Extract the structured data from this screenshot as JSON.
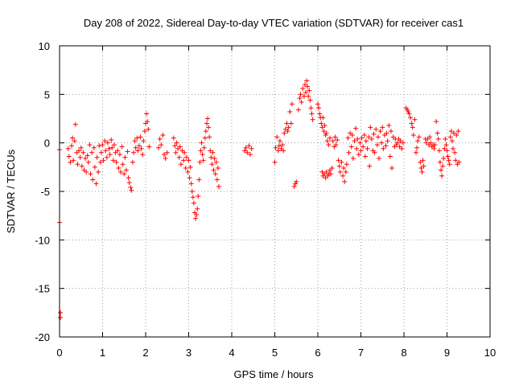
{
  "chart_data": {
    "type": "scatter",
    "title": "Day 208 of 2022, Sidereal Day-to-day VTEC variation (SDTVAR) for receiver cas1",
    "xlabel": "GPS time / hours",
    "ylabel": "SDTVAR / TECUs",
    "xlim": [
      0,
      10
    ],
    "ylim": [
      -20,
      10
    ],
    "xticks": [
      0,
      1,
      2,
      3,
      4,
      5,
      6,
      7,
      8,
      9,
      10
    ],
    "yticks": [
      -20,
      -15,
      -10,
      -5,
      0,
      5,
      10
    ],
    "grid": true,
    "legend": "none",
    "marker": "+",
    "color": "#ff0000",
    "series": [
      {
        "name": "SDTVAR",
        "points": [
          [
            0.0,
            -0.7
          ],
          [
            0.0,
            -8.2
          ],
          [
            0.02,
            -17.5
          ],
          [
            0.02,
            -18.0
          ],
          [
            0.2,
            -0.6
          ],
          [
            0.22,
            -1.4
          ],
          [
            0.25,
            -2.0
          ],
          [
            0.28,
            -0.3
          ],
          [
            0.3,
            0.5
          ],
          [
            0.32,
            -1.8
          ],
          [
            0.35,
            0.2
          ],
          [
            0.37,
            1.9
          ],
          [
            0.4,
            -1.0
          ],
          [
            0.42,
            -2.2
          ],
          [
            0.45,
            -0.8
          ],
          [
            0.48,
            -1.5
          ],
          [
            0.5,
            -0.5
          ],
          [
            0.52,
            -2.4
          ],
          [
            0.55,
            -1.0
          ],
          [
            0.57,
            -2.8
          ],
          [
            0.6,
            -1.6
          ],
          [
            0.62,
            -3.0
          ],
          [
            0.65,
            -1.3
          ],
          [
            0.67,
            -2.0
          ],
          [
            0.7,
            -0.2
          ],
          [
            0.72,
            -3.2
          ],
          [
            0.75,
            -1.0
          ],
          [
            0.77,
            -3.8
          ],
          [
            0.8,
            -0.5
          ],
          [
            0.82,
            -2.5
          ],
          [
            0.85,
            -4.2
          ],
          [
            0.87,
            -1.5
          ],
          [
            0.9,
            -3.0
          ],
          [
            0.92,
            -0.3
          ],
          [
            0.95,
            -2.0
          ],
          [
            0.97,
            -1.0
          ],
          [
            1.0,
            -0.2
          ],
          [
            1.02,
            -1.8
          ],
          [
            1.05,
            0.2
          ],
          [
            1.07,
            -0.8
          ],
          [
            1.1,
            -1.5
          ],
          [
            1.12,
            0.0
          ],
          [
            1.15,
            -0.6
          ],
          [
            1.17,
            -1.2
          ],
          [
            1.2,
            0.3
          ],
          [
            1.22,
            -0.5
          ],
          [
            1.25,
            -1.8
          ],
          [
            1.27,
            -0.2
          ],
          [
            1.3,
            -1.0
          ],
          [
            1.32,
            -2.0
          ],
          [
            1.35,
            -0.8
          ],
          [
            1.37,
            -2.6
          ],
          [
            1.4,
            -1.2
          ],
          [
            1.42,
            -3.0
          ],
          [
            1.45,
            -0.4
          ],
          [
            1.47,
            -2.2
          ],
          [
            1.5,
            -3.2
          ],
          [
            1.52,
            -1.5
          ],
          [
            1.55,
            -2.8
          ],
          [
            1.58,
            -0.9
          ],
          [
            1.6,
            -3.6
          ],
          [
            1.62,
            -4.1
          ],
          [
            1.65,
            -4.6
          ],
          [
            1.67,
            -4.9
          ],
          [
            1.7,
            -2.0
          ],
          [
            1.72,
            -1.0
          ],
          [
            1.75,
            0.2
          ],
          [
            1.77,
            -0.5
          ],
          [
            1.8,
            0.5
          ],
          [
            1.82,
            -0.8
          ],
          [
            1.85,
            -0.3
          ],
          [
            1.88,
            0.6
          ],
          [
            1.9,
            -0.6
          ],
          [
            1.93,
            -1.2
          ],
          [
            1.95,
            0.2
          ],
          [
            1.98,
            1.2
          ],
          [
            2.0,
            2.0
          ],
          [
            2.02,
            3.0
          ],
          [
            2.04,
            2.2
          ],
          [
            2.06,
            1.4
          ],
          [
            2.08,
            -0.4
          ],
          [
            2.3,
            -0.5
          ],
          [
            2.33,
            0.4
          ],
          [
            2.36,
            -0.2
          ],
          [
            2.4,
            0.8
          ],
          [
            2.43,
            -1.2
          ],
          [
            2.46,
            -1.6
          ],
          [
            2.5,
            -1.0
          ],
          [
            2.65,
            0.5
          ],
          [
            2.68,
            -0.3
          ],
          [
            2.7,
            -1.0
          ],
          [
            2.72,
            0.0
          ],
          [
            2.75,
            -0.6
          ],
          [
            2.78,
            -1.5
          ],
          [
            2.8,
            -0.4
          ],
          [
            2.82,
            -2.2
          ],
          [
            2.85,
            -0.8
          ],
          [
            2.88,
            -1.8
          ],
          [
            2.9,
            -1.0
          ],
          [
            2.93,
            -2.6
          ],
          [
            2.95,
            -1.5
          ],
          [
            2.98,
            -3.0
          ],
          [
            3.0,
            -1.8
          ],
          [
            3.02,
            -3.6
          ],
          [
            3.04,
            -2.5
          ],
          [
            3.06,
            -4.2
          ],
          [
            3.08,
            -5.0
          ],
          [
            3.1,
            -5.6
          ],
          [
            3.12,
            -6.2
          ],
          [
            3.14,
            -7.2
          ],
          [
            3.16,
            -7.8
          ],
          [
            3.18,
            -7.4
          ],
          [
            3.2,
            -6.8
          ],
          [
            3.22,
            -5.5
          ],
          [
            3.24,
            -3.8
          ],
          [
            3.26,
            -2.0
          ],
          [
            3.28,
            -0.8
          ],
          [
            3.3,
            0.0
          ],
          [
            3.32,
            -1.2
          ],
          [
            3.34,
            -1.8
          ],
          [
            3.36,
            -0.5
          ],
          [
            3.38,
            0.5
          ],
          [
            3.4,
            1.2
          ],
          [
            3.42,
            2.0
          ],
          [
            3.44,
            2.5
          ],
          [
            3.46,
            1.6
          ],
          [
            3.48,
            0.6
          ],
          [
            3.5,
            -0.8
          ],
          [
            3.52,
            -1.5
          ],
          [
            3.54,
            -2.2
          ],
          [
            3.56,
            -1.0
          ],
          [
            3.58,
            -2.8
          ],
          [
            3.6,
            -1.6
          ],
          [
            3.62,
            -3.2
          ],
          [
            3.64,
            -2.0
          ],
          [
            3.66,
            -3.8
          ],
          [
            3.68,
            -2.6
          ],
          [
            3.7,
            -4.5
          ],
          [
            4.3,
            -0.8
          ],
          [
            4.33,
            -0.5
          ],
          [
            4.36,
            -1.0
          ],
          [
            4.4,
            -0.3
          ],
          [
            4.43,
            -1.2
          ],
          [
            4.46,
            -0.6
          ],
          [
            5.0,
            -2.0
          ],
          [
            5.02,
            -0.5
          ],
          [
            5.05,
            0.6
          ],
          [
            5.08,
            -0.8
          ],
          [
            5.1,
            -0.3
          ],
          [
            5.12,
            0.2
          ],
          [
            5.15,
            -0.6
          ],
          [
            5.18,
            -0.2
          ],
          [
            5.2,
            -0.8
          ],
          [
            5.22,
            1.0
          ],
          [
            5.25,
            1.4
          ],
          [
            5.28,
            2.0
          ],
          [
            5.3,
            1.2
          ],
          [
            5.32,
            1.6
          ],
          [
            5.35,
            3.2
          ],
          [
            5.38,
            2.0
          ],
          [
            5.4,
            4.0
          ],
          [
            5.45,
            -4.5
          ],
          [
            5.48,
            -4.2
          ],
          [
            5.5,
            -4.0
          ],
          [
            5.55,
            3.4
          ],
          [
            5.58,
            4.6
          ],
          [
            5.6,
            5.0
          ],
          [
            5.62,
            4.2
          ],
          [
            5.65,
            5.6
          ],
          [
            5.68,
            4.8
          ],
          [
            5.7,
            6.0
          ],
          [
            5.72,
            5.2
          ],
          [
            5.74,
            6.4
          ],
          [
            5.76,
            5.8
          ],
          [
            5.78,
            4.8
          ],
          [
            5.8,
            5.4
          ],
          [
            5.82,
            4.4
          ],
          [
            5.84,
            3.6
          ],
          [
            5.86,
            3.0
          ],
          [
            5.88,
            2.4
          ],
          [
            6.0,
            4.0
          ],
          [
            6.02,
            3.6
          ],
          [
            6.04,
            3.0
          ],
          [
            6.06,
            2.6
          ],
          [
            6.08,
            2.0
          ],
          [
            6.1,
            1.6
          ],
          [
            6.12,
            2.6
          ],
          [
            6.14,
            1.2
          ],
          [
            6.16,
            1.8
          ],
          [
            6.18,
            0.8
          ],
          [
            6.2,
            1.0
          ],
          [
            6.22,
            0.2
          ],
          [
            6.25,
            -0.2
          ],
          [
            6.28,
            0.5
          ],
          [
            6.1,
            -3.0
          ],
          [
            6.12,
            -3.4
          ],
          [
            6.15,
            -3.2
          ],
          [
            6.18,
            -3.6
          ],
          [
            6.2,
            -3.0
          ],
          [
            6.23,
            -3.4
          ],
          [
            6.26,
            -3.2
          ],
          [
            6.28,
            -2.8
          ],
          [
            6.3,
            -3.2
          ],
          [
            6.33,
            -2.6
          ],
          [
            6.35,
            0.2
          ],
          [
            6.38,
            -0.4
          ],
          [
            6.4,
            0.6
          ],
          [
            6.42,
            -0.2
          ],
          [
            6.45,
            0.3
          ],
          [
            6.48,
            -1.8
          ],
          [
            6.5,
            -2.4
          ],
          [
            6.52,
            -3.0
          ],
          [
            6.55,
            -2.0
          ],
          [
            6.58,
            -3.4
          ],
          [
            6.6,
            -2.6
          ],
          [
            6.62,
            -4.0
          ],
          [
            6.65,
            -3.0
          ],
          [
            6.67,
            -2.2
          ],
          [
            6.7,
            0.5
          ],
          [
            6.72,
            -1.0
          ],
          [
            6.75,
            1.0
          ],
          [
            6.78,
            -0.4
          ],
          [
            6.8,
            0.8
          ],
          [
            6.82,
            -1.6
          ],
          [
            6.85,
            0.2
          ],
          [
            6.88,
            1.5
          ],
          [
            6.9,
            -0.6
          ],
          [
            6.92,
            0.4
          ],
          [
            6.95,
            -1.2
          ],
          [
            6.98,
            0.0
          ],
          [
            7.0,
            -0.8
          ],
          [
            7.02,
            0.5
          ],
          [
            7.05,
            -0.4
          ],
          [
            7.08,
            0.8
          ],
          [
            7.1,
            -1.4
          ],
          [
            7.12,
            0.2
          ],
          [
            7.15,
            -0.6
          ],
          [
            7.18,
            0.6
          ],
          [
            7.2,
            -2.4
          ],
          [
            7.22,
            1.6
          ],
          [
            7.25,
            0.4
          ],
          [
            7.28,
            -0.8
          ],
          [
            7.3,
            0.9
          ],
          [
            7.32,
            -1.0
          ],
          [
            7.35,
            1.4
          ],
          [
            7.38,
            -0.2
          ],
          [
            7.4,
            0.6
          ],
          [
            7.42,
            -1.6
          ],
          [
            7.45,
            1.2
          ],
          [
            7.48,
            0.0
          ],
          [
            7.5,
            1.6
          ],
          [
            7.52,
            -0.6
          ],
          [
            7.55,
            0.8
          ],
          [
            7.58,
            -0.3
          ],
          [
            7.6,
            1.0
          ],
          [
            7.62,
            0.2
          ],
          [
            7.65,
            1.8
          ],
          [
            7.68,
            -1.4
          ],
          [
            7.7,
            1.2
          ],
          [
            7.72,
            -2.6
          ],
          [
            7.75,
            0.6
          ],
          [
            7.78,
            -0.4
          ],
          [
            7.8,
            0.4
          ],
          [
            7.82,
            -0.2
          ],
          [
            7.85,
            0.0
          ],
          [
            7.88,
            0.4
          ],
          [
            7.9,
            -0.4
          ],
          [
            7.92,
            0.2
          ],
          [
            7.95,
            -0.6
          ],
          [
            7.98,
            0.0
          ],
          [
            8.05,
            3.6
          ],
          [
            8.08,
            3.4
          ],
          [
            8.1,
            3.2
          ],
          [
            8.12,
            3.0
          ],
          [
            8.15,
            2.6
          ],
          [
            8.18,
            2.0
          ],
          [
            8.2,
            1.6
          ],
          [
            8.22,
            0.8
          ],
          [
            8.25,
            2.4
          ],
          [
            8.28,
            -1.0
          ],
          [
            8.3,
            -0.5
          ],
          [
            8.32,
            0.2
          ],
          [
            8.35,
            0.6
          ],
          [
            8.38,
            -2.0
          ],
          [
            8.4,
            -2.6
          ],
          [
            8.42,
            -3.0
          ],
          [
            8.44,
            -1.8
          ],
          [
            8.46,
            -2.4
          ],
          [
            8.5,
            0.4
          ],
          [
            8.52,
            0.0
          ],
          [
            8.55,
            0.4
          ],
          [
            8.58,
            -0.2
          ],
          [
            8.6,
            0.6
          ],
          [
            8.62,
            0.0
          ],
          [
            8.65,
            -0.4
          ],
          [
            8.68,
            -0.2
          ],
          [
            8.7,
            -0.6
          ],
          [
            8.72,
            -0.2
          ],
          [
            8.75,
            2.2
          ],
          [
            8.78,
            1.0
          ],
          [
            8.8,
            0.4
          ],
          [
            8.82,
            -0.8
          ],
          [
            8.84,
            -2.0
          ],
          [
            8.86,
            -2.8
          ],
          [
            8.88,
            -3.4
          ],
          [
            8.9,
            -2.4
          ],
          [
            8.92,
            -1.6
          ],
          [
            8.94,
            -0.6
          ],
          [
            8.96,
            0.4
          ],
          [
            8.98,
            -0.2
          ],
          [
            9.0,
            -0.8
          ],
          [
            9.02,
            -1.4
          ],
          [
            9.04,
            -1.8
          ],
          [
            9.06,
            -2.2
          ],
          [
            9.08,
            0.6
          ],
          [
            9.1,
            1.2
          ],
          [
            9.12,
            0.2
          ],
          [
            9.14,
            -0.6
          ],
          [
            9.16,
            1.0
          ],
          [
            9.18,
            -1.0
          ],
          [
            9.2,
            -1.8
          ],
          [
            9.22,
            0.8
          ],
          [
            9.24,
            -2.2
          ],
          [
            9.26,
            1.2
          ],
          [
            9.28,
            -2.0
          ]
        ]
      }
    ]
  }
}
